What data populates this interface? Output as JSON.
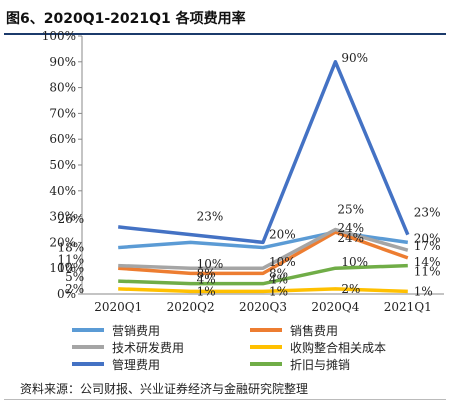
{
  "title": "图6、2020Q1-2021Q1 各项费用率",
  "source": "资料来源：公司财报、兴业证券经济与金融研究院整理",
  "chart_data": {
    "type": "line",
    "title": "图6、2020Q1-2021Q1 各项费用率",
    "xlabel": "",
    "ylabel": "",
    "categories": [
      "2020Q1",
      "2020Q2",
      "2020Q3",
      "2020Q4",
      "2021Q1"
    ],
    "ylim": [
      0,
      100
    ],
    "yticks": [
      "0%",
      "10%",
      "20%",
      "30%",
      "40%",
      "50%",
      "60%",
      "70%",
      "80%",
      "90%",
      "100%"
    ],
    "grid": false,
    "legend_position": "bottom",
    "series": [
      {
        "name": "营销费用",
        "color": "#5b9bd5",
        "values": [
          18,
          20,
          18,
          24,
          20
        ],
        "labels": [
          "18%",
          "",
          "",
          "24%",
          "20%"
        ]
      },
      {
        "name": "销售费用",
        "color": "#ed7d31",
        "values": [
          10,
          8,
          8,
          24,
          14
        ],
        "labels": [
          "10%",
          "8%",
          "8%",
          "24%",
          "14%"
        ]
      },
      {
        "name": "技术研发费用",
        "color": "#a5a5a5",
        "values": [
          11,
          10,
          10,
          25,
          17
        ],
        "labels": [
          "11%",
          "10%",
          "10%",
          "25%",
          "17%"
        ]
      },
      {
        "name": "收购整合相关成本",
        "color": "#ffc000",
        "values": [
          2,
          1,
          1,
          2,
          1
        ],
        "labels": [
          "2%",
          "1%",
          "1%",
          "2%",
          "1%"
        ]
      },
      {
        "name": "管理费用",
        "color": "#4472c4",
        "values": [
          26,
          23,
          20,
          90,
          23
        ],
        "labels": [
          "26%",
          "23%",
          "20%",
          "90%",
          "23%"
        ]
      },
      {
        "name": "折旧与摊销",
        "color": "#70ad47",
        "values": [
          5,
          4,
          4,
          10,
          11
        ],
        "labels": [
          "5%",
          "4%",
          "4%",
          "10%",
          "11%"
        ]
      }
    ]
  }
}
